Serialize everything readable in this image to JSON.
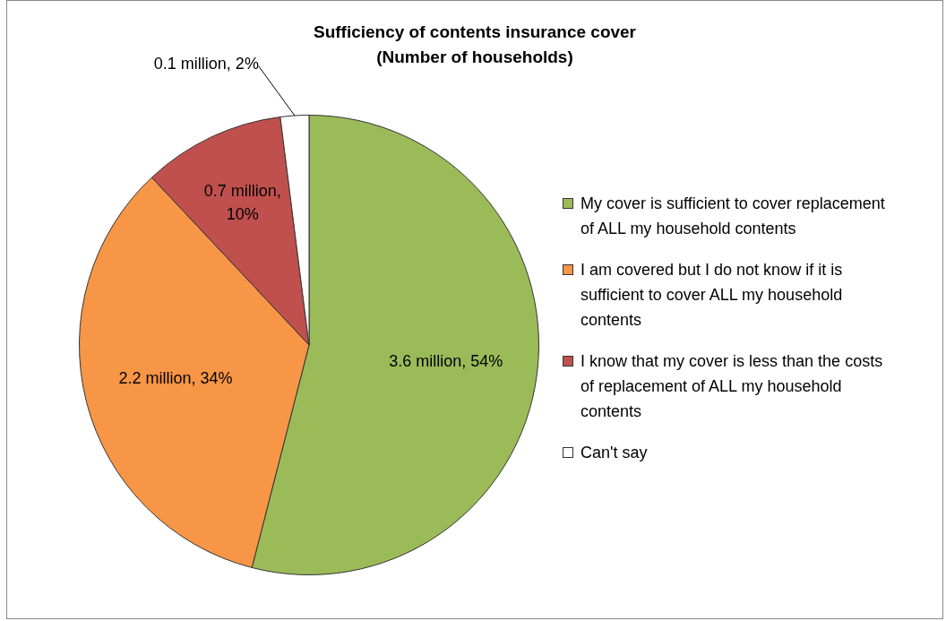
{
  "chart_data": {
    "type": "pie",
    "title": "Sufficiency of contents insurance cover\n(Number of households)",
    "categories": [
      "My cover is sufficient to cover replacement of ALL my household contents",
      "I am covered but I do not know if it is sufficient to cover ALL my household contents",
      "I know that my cover is less than the costs of replacement of ALL my household contents",
      "Can't say"
    ],
    "values": [
      54,
      34,
      10,
      2
    ],
    "colors": [
      "#9bbb59",
      "#f79646",
      "#c0504d",
      "#ffffff"
    ],
    "value_labels": [
      "3.6 million, 54%",
      "2.2 million, 34%",
      "0.7 million, 10%",
      "0.1 million, 2%"
    ],
    "legend": "right"
  }
}
